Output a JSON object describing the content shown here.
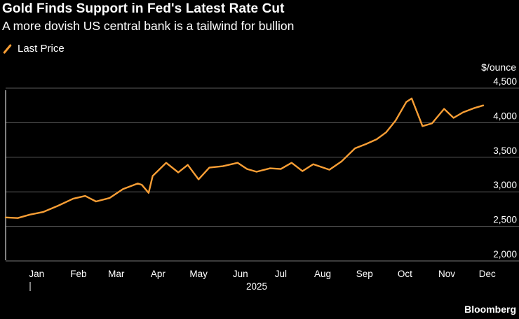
{
  "title": "Gold Finds Support in Fed's Latest Rate Cut",
  "subtitle": "A more dovish US central bank is a tailwind for bullion",
  "source": "Bloomberg",
  "colors": {
    "line": "#f89e35",
    "grid": "#5a5a5a",
    "background": "#000000"
  },
  "chart_data": {
    "type": "line",
    "title": "Gold Finds Support in Fed's Latest Rate Cut",
    "subtitle": "A more dovish US central bank is a tailwind for bullion",
    "ylabel": "$/ounce",
    "ylim": [
      2000,
      4500
    ],
    "yticks": [
      2000,
      2500,
      3000,
      3500,
      4000,
      4500
    ],
    "ytick_labels": [
      "2,000",
      "2,500",
      "3,000",
      "3,500",
      "4,000",
      "4,500"
    ],
    "xticks": [
      "Jan",
      "Feb",
      "Mar",
      "Apr",
      "May",
      "Jun",
      "Jul",
      "Aug",
      "Sep",
      "Oct",
      "Nov",
      "Dec"
    ],
    "year_label": "2025",
    "grid": true,
    "legend_position": "top-left",
    "series": [
      {
        "name": "Last Price",
        "color": "#f89e35",
        "x": [
          "2024-12-23",
          "2025-01-01",
          "2025-01-10",
          "2025-01-20",
          "2025-01-31",
          "2025-02-11",
          "2025-02-20",
          "2025-02-28",
          "2025-03-10",
          "2025-03-20",
          "2025-03-31",
          "2025-04-03",
          "2025-04-08",
          "2025-04-11",
          "2025-04-21",
          "2025-04-30",
          "2025-05-07",
          "2025-05-15",
          "2025-05-23",
          "2025-06-02",
          "2025-06-13",
          "2025-06-20",
          "2025-06-27",
          "2025-07-07",
          "2025-07-15",
          "2025-07-23",
          "2025-07-31",
          "2025-08-08",
          "2025-08-20",
          "2025-08-29",
          "2025-09-08",
          "2025-09-16",
          "2025-09-24",
          "2025-10-01",
          "2025-10-08",
          "2025-10-16",
          "2025-10-20",
          "2025-10-28",
          "2025-11-04",
          "2025-11-13",
          "2025-11-20",
          "2025-11-27",
          "2025-12-05",
          "2025-12-12"
        ],
        "values": [
          2630,
          2620,
          2670,
          2710,
          2800,
          2900,
          2940,
          2860,
          2910,
          3040,
          3120,
          3100,
          2985,
          3230,
          3420,
          3280,
          3390,
          3180,
          3350,
          3370,
          3420,
          3330,
          3290,
          3340,
          3330,
          3420,
          3300,
          3400,
          3320,
          3440,
          3630,
          3690,
          3760,
          3860,
          4030,
          4300,
          4350,
          3950,
          3990,
          4200,
          4070,
          4150,
          4210,
          4250
        ]
      }
    ]
  }
}
